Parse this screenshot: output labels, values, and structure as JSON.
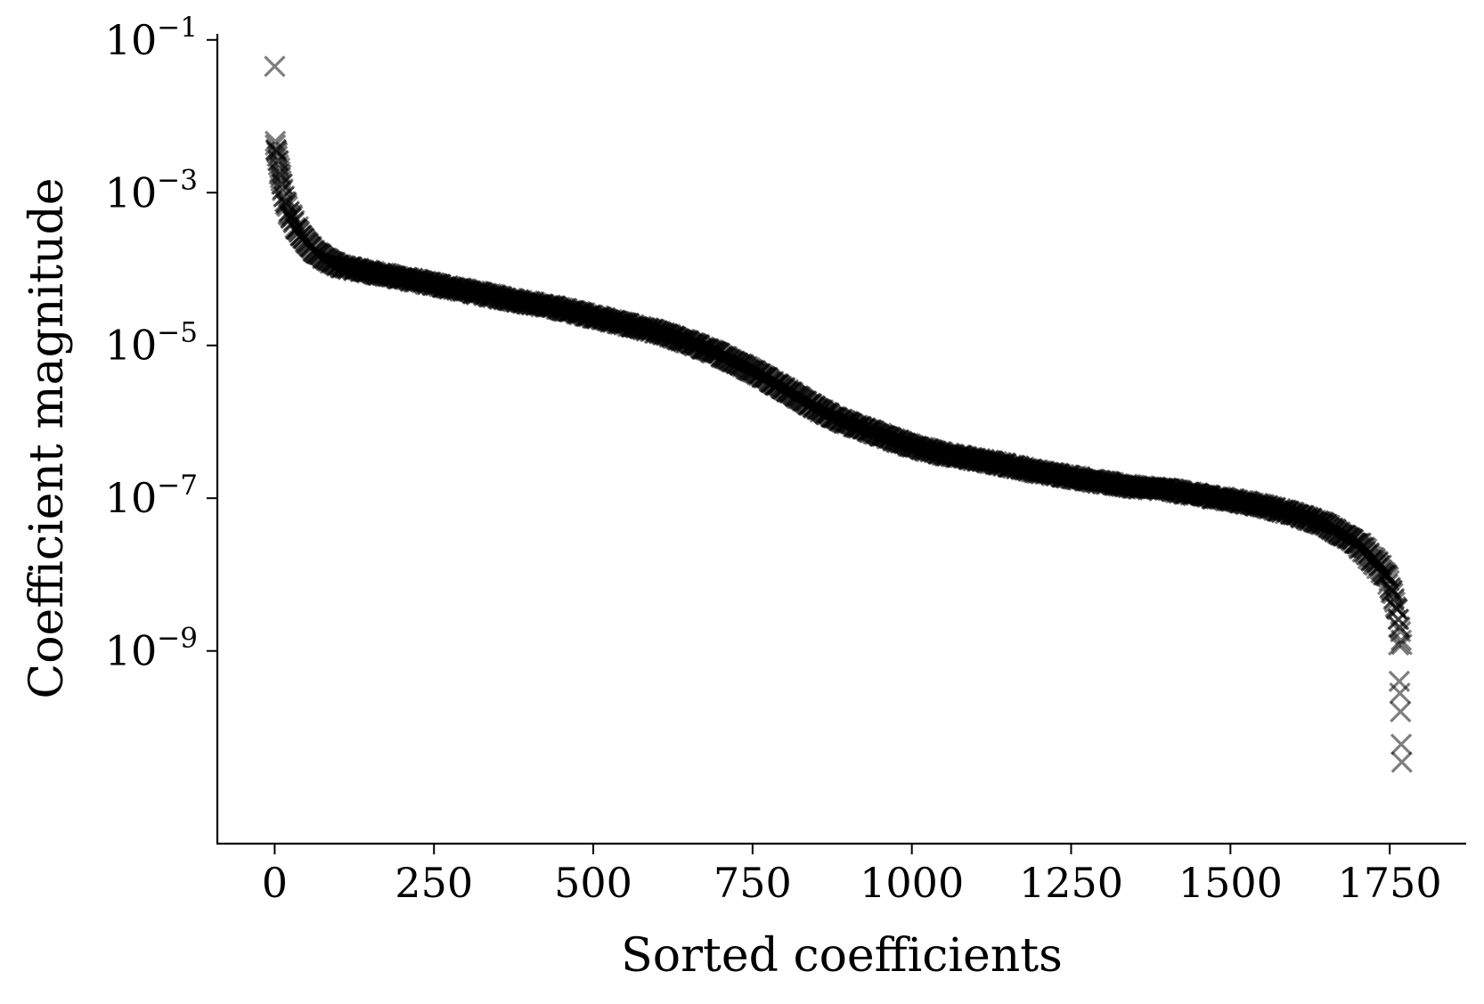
{
  "chart_data": {
    "type": "scatter",
    "title": "",
    "xlabel": "Sorted coefficients",
    "ylabel": "Coefficient magnitude",
    "x_range": [
      -90,
      1870
    ],
    "xlim": [
      -90,
      1870
    ],
    "ylim": [
      3e-12,
      0.12
    ],
    "y_scale": "log",
    "grid": false,
    "legend": "none",
    "x_ticks": [
      0,
      250,
      500,
      750,
      1000,
      1250,
      1500,
      1750
    ],
    "x_tick_labels": [
      "0",
      "250",
      "500",
      "750",
      "1000",
      "1250",
      "1500",
      "1750"
    ],
    "y_ticks": [
      {
        "value": 0.1,
        "base": "10",
        "exp": "−1"
      },
      {
        "value": 0.001,
        "base": "10",
        "exp": "−3"
      },
      {
        "value": 1e-05,
        "base": "10",
        "exp": "−5"
      },
      {
        "value": 1e-07,
        "base": "10",
        "exp": "−7"
      },
      {
        "value": 1e-09,
        "base": "10",
        "exp": "−9"
      }
    ],
    "marker": "x",
    "marker_color": "#000000",
    "marker_opacity": 0.5,
    "n_points": 1770,
    "curve_knots_x": [
      1,
      5,
      10,
      20,
      40,
      60,
      80,
      100,
      150,
      200,
      250,
      300,
      350,
      400,
      450,
      500,
      550,
      600,
      650,
      700,
      750,
      780,
      800,
      850,
      900,
      950,
      1000,
      1050,
      1100,
      1150,
      1200,
      1250,
      1300,
      1350,
      1400,
      1450,
      1500,
      1550,
      1600,
      1650,
      1700,
      1720,
      1740,
      1750,
      1760,
      1765,
      1769
    ],
    "curve_knots_y": [
      0.0045,
      0.0025,
      0.0013,
      0.0006,
      0.00028,
      0.00018,
      0.000135,
      0.00011,
      9.1e-05,
      7.6e-05,
      6.3e-05,
      5.2e-05,
      4.3e-05,
      3.6e-05,
      3e-05,
      2.4e-05,
      1.9e-05,
      1.5e-05,
      1.1e-05,
      7.5e-06,
      4.7e-06,
      3.4e-06,
      2.7e-06,
      1.5e-06,
      9.5e-07,
      6.8e-07,
      4.8e-07,
      3.8e-07,
      3.2e-07,
      2.7e-07,
      2.2e-07,
      1.9e-07,
      1.6e-07,
      1.4e-07,
      1.3e-07,
      1.1e-07,
      9.5e-08,
      8e-08,
      6.2e-08,
      4.5e-08,
      2.5e-08,
      1.7e-08,
      1.1e-08,
      7.5e-09,
      4e-09,
      2.2e-09,
      1.2e-09
    ],
    "outliers": [
      {
        "x": 0,
        "y": 0.045
      },
      {
        "x": 1,
        "y": 0.0042
      },
      {
        "x": 2,
        "y": 0.0036
      },
      {
        "x": 4,
        "y": 0.003
      },
      {
        "x": 6,
        "y": 0.0026
      },
      {
        "x": 8,
        "y": 0.0021
      },
      {
        "x": 10,
        "y": 0.0017
      },
      {
        "x": 12,
        "y": 0.0013
      },
      {
        "x": 1764,
        "y": 1.2e-09
      },
      {
        "x": 1765,
        "y": 4e-10
      },
      {
        "x": 1766,
        "y": 2.8e-10
      },
      {
        "x": 1767,
        "y": 1.6e-10
      },
      {
        "x": 1768,
        "y": 6e-11
      },
      {
        "x": 1769,
        "y": 3.5e-11
      }
    ]
  }
}
